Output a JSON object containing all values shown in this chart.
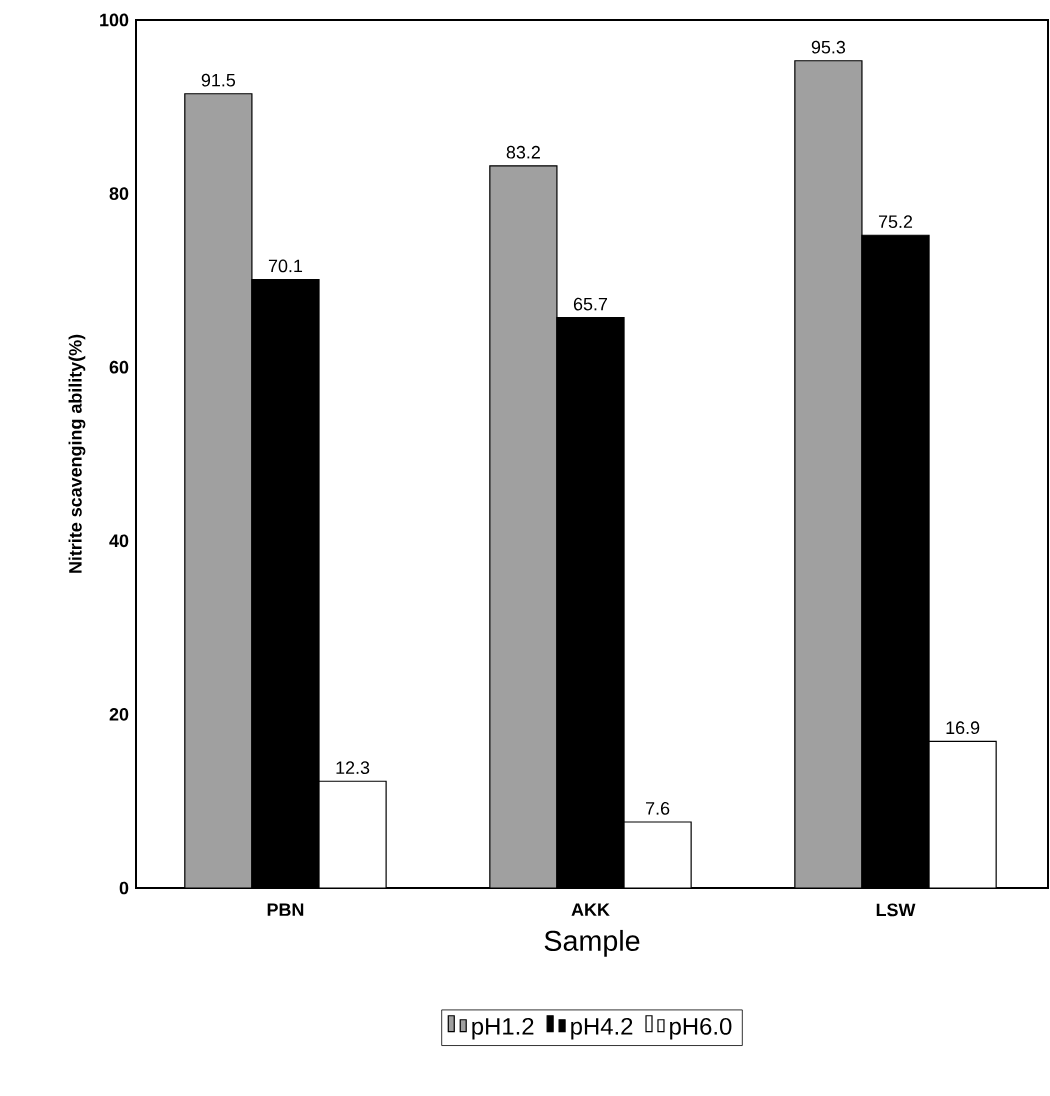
{
  "chart_data": {
    "type": "bar",
    "xlabel": "Sample",
    "ylabel": "Nitrite scavenging ability(%)",
    "categories": [
      "PBN",
      "AKK",
      "LSW"
    ],
    "series": [
      {
        "name": "pH1.2",
        "color": "#a0a0a0",
        "values": [
          91.5,
          83.2,
          95.3
        ]
      },
      {
        "name": "pH4.2",
        "color": "#000000",
        "values": [
          70.1,
          65.7,
          75.2
        ]
      },
      {
        "name": "pH6.0",
        "color": "#ffffff",
        "values": [
          12.3,
          7.6,
          16.9
        ]
      }
    ],
    "ylim": [
      0,
      100
    ],
    "yticks": [
      0,
      20,
      40,
      60,
      80,
      100
    ],
    "data_labels": true,
    "legend": "bottom"
  }
}
